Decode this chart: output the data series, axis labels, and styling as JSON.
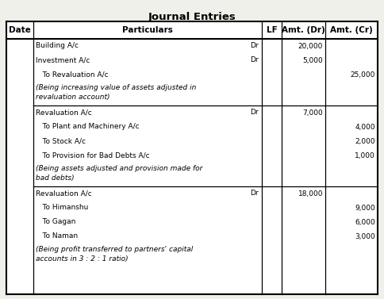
{
  "title": "Journal Entries",
  "title_fontsize": 9.5,
  "bg_color": "#f0f0eb",
  "header": [
    "Date",
    "Particulars",
    "LF",
    "Amt. (Dr)",
    "Amt. (Cr)"
  ],
  "rows": [
    {
      "section": 1,
      "particulars": "Building A/c",
      "dr_tag": "Dr",
      "amt_dr": "20,000",
      "amt_cr": "",
      "italic": false,
      "multiline": false
    },
    {
      "section": 1,
      "particulars": "Investment A/c",
      "dr_tag": "Dr",
      "amt_dr": "5,000",
      "amt_cr": "",
      "italic": false,
      "multiline": false
    },
    {
      "section": 1,
      "particulars": "   To Revaluation A/c",
      "dr_tag": "",
      "amt_dr": "",
      "amt_cr": "25,000",
      "italic": false,
      "multiline": false
    },
    {
      "section": 1,
      "particulars": "(Being increasing value of assets adjusted in\nrevaluation account)",
      "dr_tag": "",
      "amt_dr": "",
      "amt_cr": "",
      "italic": true,
      "multiline": true
    },
    {
      "section": 2,
      "particulars": "Revaluation A/c",
      "dr_tag": "Dr",
      "amt_dr": "7,000",
      "amt_cr": "",
      "italic": false,
      "multiline": false
    },
    {
      "section": 2,
      "particulars": "   To Plant and Machinery A/c",
      "dr_tag": "",
      "amt_dr": "",
      "amt_cr": "4,000",
      "italic": false,
      "multiline": false
    },
    {
      "section": 2,
      "particulars": "   To Stock A/c",
      "dr_tag": "",
      "amt_dr": "",
      "amt_cr": "2,000",
      "italic": false,
      "multiline": false
    },
    {
      "section": 2,
      "particulars": "   To Provision for Bad Debts A/c",
      "dr_tag": "",
      "amt_dr": "",
      "amt_cr": "1,000",
      "italic": false,
      "multiline": false
    },
    {
      "section": 2,
      "particulars": "(Being assets adjusted and provision made for\nbad debts)",
      "dr_tag": "",
      "amt_dr": "",
      "amt_cr": "",
      "italic": true,
      "multiline": true
    },
    {
      "section": 3,
      "particulars": "Revaluation A/c",
      "dr_tag": "Dr",
      "amt_dr": "18,000",
      "amt_cr": "",
      "italic": false,
      "multiline": false
    },
    {
      "section": 3,
      "particulars": "   To Himanshu",
      "dr_tag": "",
      "amt_dr": "",
      "amt_cr": "9,000",
      "italic": false,
      "multiline": false
    },
    {
      "section": 3,
      "particulars": "   To Gagan",
      "dr_tag": "",
      "amt_dr": "",
      "amt_cr": "6,000",
      "italic": false,
      "multiline": false
    },
    {
      "section": 3,
      "particulars": "   To Naman",
      "dr_tag": "",
      "amt_dr": "",
      "amt_cr": "3,000",
      "italic": false,
      "multiline": false
    },
    {
      "section": 3,
      "particulars": "(Being profit transferred to partners' capital\naccounts in 3 : 2 : 1 ratio)",
      "dr_tag": "",
      "amt_dr": "",
      "amt_cr": "",
      "italic": true,
      "multiline": true
    }
  ]
}
